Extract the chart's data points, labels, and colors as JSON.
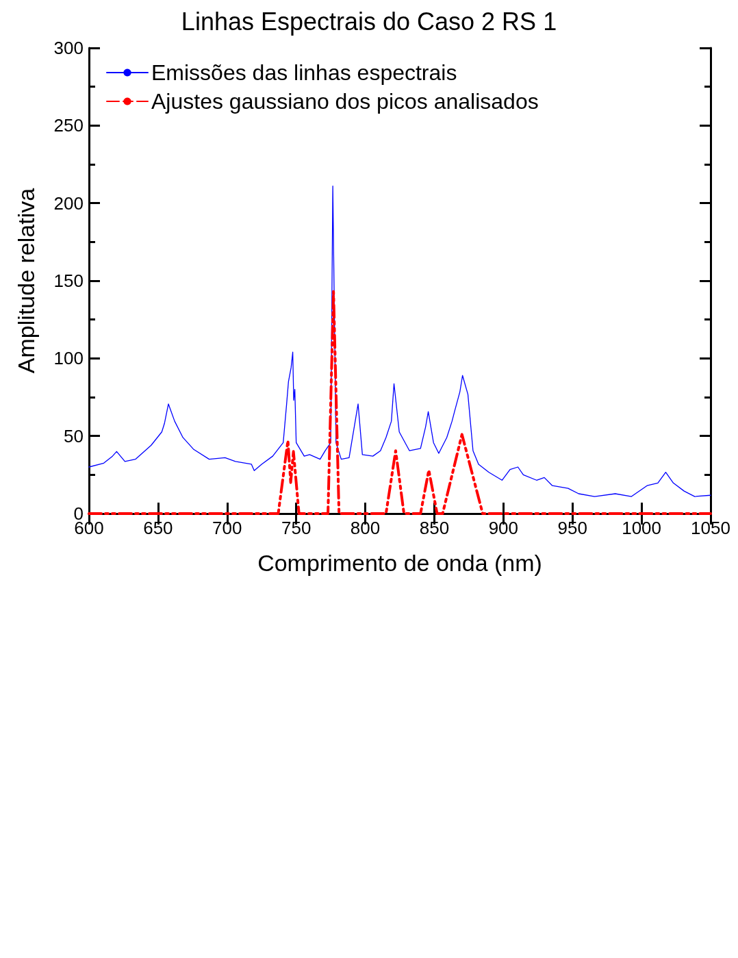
{
  "chart_data": {
    "type": "line",
    "title": "Linhas Espectrais do Caso 2 RS 1",
    "xlabel": "Comprimento de onda (nm)",
    "ylabel": "Amplitude relativa",
    "xlim": [
      600,
      1050
    ],
    "xticks": [
      600,
      650,
      700,
      750,
      800,
      850,
      900,
      950,
      1000,
      1050
    ],
    "ylim": [
      0,
      300
    ],
    "yticks": [
      0,
      50,
      100,
      150,
      200,
      250,
      300
    ],
    "grid": false,
    "legend": "top left",
    "marker": "none",
    "series": [
      {
        "name": "Emissões das linhas espectrais",
        "color": "#0000ff",
        "line_style": "solid",
        "x": [
          600,
          610.7,
          617,
          620,
          626,
          633.6,
          645,
          652.7,
          654.6,
          657.5,
          662,
          668,
          675.6,
          687,
          698.5,
          706,
          717.6,
          719.6,
          725,
          733,
          740.6,
          743,
          744.4,
          746.3,
          747.5,
          748.2,
          749,
          750,
          755.8,
          759.7,
          767.3,
          771,
          775,
          776.5,
          778.8,
          782.6,
          788.3,
          794.8,
          797.9,
          805.5,
          811,
          815,
          818.9,
          820.8,
          824.6,
          832,
          840,
          843.7,
          845.6,
          849.4,
          853.2,
          859,
          862.8,
          864.7,
          868.5,
          870.4,
          874.3,
          878,
          882,
          889.5,
          899,
          904.8,
          910.5,
          914.4,
          924,
          929.6,
          935.4,
          946.8,
          954.5,
          966,
          981,
          992.7,
          1004,
          1011.8,
          1017.5,
          1023,
          1030.8,
          1038.5,
          1050
        ],
        "values": [
          30,
          32.5,
          37,
          40,
          33.6,
          35,
          44,
          52.6,
          58,
          70.6,
          59.5,
          49,
          41.5,
          35,
          36,
          33.6,
          31.8,
          27.7,
          31.8,
          37,
          45.7,
          70,
          85,
          94,
          104,
          73,
          80,
          45.7,
          37,
          38,
          35,
          40.5,
          45.7,
          211,
          45.7,
          35,
          36,
          70.6,
          38,
          37,
          40.5,
          49,
          59.5,
          83.7,
          52.6,
          40.5,
          42,
          56,
          65.7,
          45.7,
          38.8,
          49,
          59.5,
          66,
          78.5,
          89,
          76.8,
          40.5,
          31.8,
          26.6,
          21.5,
          28.4,
          30,
          25,
          21.5,
          23.2,
          18,
          16.3,
          12.8,
          11,
          12.8,
          11,
          18,
          19.7,
          26.6,
          19.7,
          14.5,
          11,
          11.8
        ]
      },
      {
        "name": "Ajustes gaussiano dos picos analisados",
        "color": "#ff0000",
        "line_style": "dashed",
        "x": [
          600,
          737,
          744,
          746,
          748,
          752,
          773,
          777,
          781,
          815,
          822,
          828,
          840,
          846,
          852,
          856,
          870,
          885,
          1050
        ],
        "values": [
          0,
          0,
          47,
          20,
          40,
          0,
          0,
          143,
          0,
          0,
          40.5,
          0,
          0,
          28,
          0,
          0,
          51,
          0,
          0
        ]
      }
    ]
  }
}
